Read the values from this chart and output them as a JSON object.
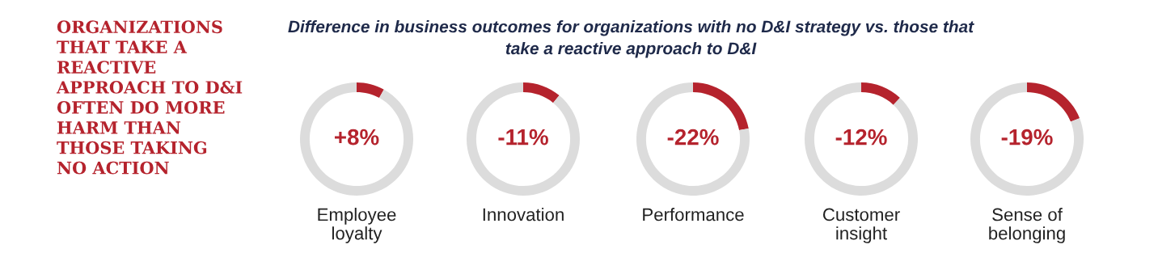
{
  "chart_data": [
    {
      "type": "other",
      "annotations": [
        "ORGANIZATIONS\nTHAT TAKE A\nREACTIVE\nAPPROACH TO D&I\nOFTEN DO MORE\nHARM THAN\nTHOSE TAKING\nNO ACTION"
      ]
    },
    {
      "type": "other",
      "title": "Difference in business outcomes for organizations with no D&I strategy vs. those that\ntake a reactive approach to D&I"
    },
    {
      "type": "donut",
      "title": "Employee\nloyalty",
      "categories": [
        null,
        null
      ],
      "values": [
        8,
        92
      ],
      "annotations": [
        "+8%"
      ],
      "colors": [
        "#b5232d",
        "#dcdcdc"
      ]
    },
    {
      "type": "donut",
      "title": "Innovation",
      "categories": [
        null,
        null
      ],
      "values": [
        11,
        89
      ],
      "annotations": [
        "-11%"
      ],
      "colors": [
        "#b5232d",
        "#dcdcdc"
      ]
    },
    {
      "type": "donut",
      "title": "Performance",
      "categories": [
        null,
        null
      ],
      "values": [
        22,
        78
      ],
      "annotations": [
        "-22%"
      ],
      "colors": [
        "#b5232d",
        "#dcdcdc"
      ]
    },
    {
      "type": "donut",
      "title": "Customer\ninsight",
      "categories": [
        null,
        null
      ],
      "values": [
        12,
        88
      ],
      "annotations": [
        "-12%"
      ],
      "colors": [
        "#b5232d",
        "#dcdcdc"
      ]
    },
    {
      "type": "donut",
      "title": "Sense of\nbelonging",
      "categories": [
        null,
        null
      ],
      "values": [
        19,
        81
      ],
      "annotations": [
        "-19%"
      ],
      "colors": [
        "#b5232d",
        "#dcdcdc"
      ]
    }
  ]
}
